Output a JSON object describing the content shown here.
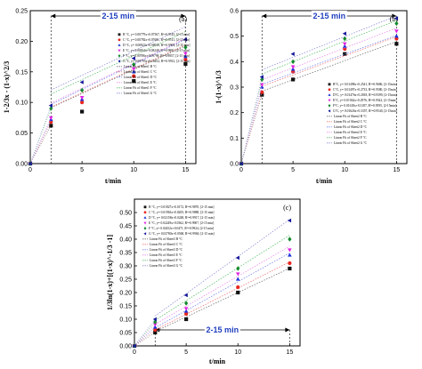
{
  "series_colors": [
    "#111111",
    "#e8261f",
    "#1d34d8",
    "#e023e0",
    "#158a2e",
    "#14169a"
  ],
  "series_markers": [
    "square",
    "circle",
    "triangle-up",
    "triangle-down",
    "diamond",
    "triangle-left"
  ],
  "fit_colors": [
    "#777777",
    "#f07a7a",
    "#7a86ee",
    "#e98ee9",
    "#5fbf70",
    "#8d8fd4"
  ],
  "chart_data": [
    {
      "type": "scatter",
      "panel_label": "(a)",
      "xlabel": "t/min",
      "ylabel": "1-2/3x - (1-x)^2/3",
      "xlim": [
        0,
        16
      ],
      "ylim": [
        0,
        0.25
      ],
      "xticks": [
        0,
        5,
        10,
        15
      ],
      "yticks": [
        0,
        0.05,
        0.1,
        0.15,
        0.2,
        0.25
      ],
      "ytick_labels": [
        "0.00",
        "0.05",
        "0.10",
        "0.15",
        "0.20",
        "0.25"
      ],
      "range_label": "2-15 min",
      "range": [
        2,
        15
      ],
      "x": [
        0,
        2,
        5,
        10,
        15
      ],
      "series": [
        {
          "label": "B °C, y= 0.00779x+0.07567, R²=0.9745, [2-15 min]",
          "values": [
            0,
            0.062,
            0.085,
            0.135,
            0.163
          ],
          "fit": [
            0.0757,
            0.00779
          ]
        },
        {
          "label": "C °C, y= 0.00782x+0.07681, R²=0.9741, [2-15 min]",
          "values": [
            0,
            0.068,
            0.1,
            0.143,
            0.17
          ],
          "fit": [
            0.0768,
            0.00782
          ]
        },
        {
          "label": "D °C, y= 0.00822x+0.08010, R²=0.9903, [2-15 min]",
          "values": [
            0,
            0.072,
            0.105,
            0.15,
            0.175
          ],
          "fit": [
            0.0801,
            0.00822
          ]
        },
        {
          "label": "E °C, y= 0.00814x+0.08248, R²=0.9881, [2-15 min]",
          "values": [
            0,
            0.075,
            0.108,
            0.155,
            0.18
          ],
          "fit": [
            0.0825,
            0.00814
          ]
        },
        {
          "label": "F °C, y= 0.00786x+0.09798, R²=0.9857, [2-15 min]",
          "values": [
            0,
            0.09,
            0.12,
            0.162,
            0.19
          ],
          "fit": [
            0.098,
            0.00786
          ]
        },
        {
          "label": "G °C, y= 0.00795x+0.10452, R²=0.9912, [2-15 min]",
          "values": [
            0,
            0.095,
            0.133,
            0.172,
            0.203
          ],
          "fit": [
            0.1045,
            0.00795
          ]
        }
      ],
      "fit_labels": [
        "Linear Fit of Sheet1 B °C",
        "Linear Fit of Sheet1 C °C",
        "Linear Fit of Sheet1 D °C",
        "Linear Fit of Sheet1 E °C",
        "Linear Fit of Sheet1 F °C",
        "Linear Fit of Sheet1 G °C"
      ]
    },
    {
      "type": "scatter",
      "panel_label": "(b)",
      "xlabel": "t/min",
      "ylabel": "1-(1-x)^1/3",
      "xlim": [
        0,
        16
      ],
      "ylim": [
        0,
        0.6
      ],
      "xticks": [
        0,
        5,
        10,
        15
      ],
      "yticks": [
        0,
        0.1,
        0.2,
        0.3,
        0.4,
        0.5,
        0.6
      ],
      "ytick_labels": [
        "0.0",
        "0.1",
        "0.2",
        "0.3",
        "0.4",
        "0.5",
        "0.6"
      ],
      "range_label": "2-15 min",
      "range": [
        2,
        15
      ],
      "x": [
        0,
        2,
        5,
        10,
        15
      ],
      "series": [
        {
          "label": "B°C, y= 0.01498x+0.2541, R²=0.9686, [2-15min]",
          "values": [
            0,
            0.27,
            0.33,
            0.43,
            0.47
          ],
          "fit": [
            0.2541,
            0.01498
          ]
        },
        {
          "label": "C°C, y= 0.01497x+0.2733, R²=0.9580, [2-15min]",
          "values": [
            0,
            0.28,
            0.36,
            0.45,
            0.49
          ],
          "fit": [
            0.2733,
            0.01497
          ]
        },
        {
          "label": "D°C, y= 0.01476x+0.2818, R²=0.9399, [2-15min]",
          "values": [
            0,
            0.3,
            0.37,
            0.46,
            0.5
          ],
          "fit": [
            0.2818,
            0.01476
          ]
        },
        {
          "label": "E°C, y= 0.01562x+0.2976, R²=0.9542, [2-15min]",
          "values": [
            0,
            0.31,
            0.38,
            0.47,
            0.52
          ],
          "fit": [
            0.2976,
            0.01562
          ]
        },
        {
          "label": "F°C, y= 0.01618x+0.3187, R²=0.9595, [2-15min]",
          "values": [
            0,
            0.33,
            0.4,
            0.49,
            0.55
          ],
          "fit": [
            0.3187,
            0.01618
          ]
        },
        {
          "label": "G°C, y= 0.01626x+0.3357, R²=0.9540, [2-15min]",
          "values": [
            0,
            0.34,
            0.43,
            0.51,
            0.57
          ],
          "fit": [
            0.3357,
            0.01626
          ]
        }
      ],
      "fit_labels": [
        "Linear Fit of Sheet2 B °C",
        "Linear Fit of Sheet2 C °C",
        "Linear Fit of Sheet2 D °C",
        "Linear Fit of Sheet2 E °C",
        "Linear Fit of Sheet2 F °C",
        "Linear Fit of Sheet2 G °C"
      ]
    },
    {
      "type": "scatter",
      "panel_label": "(c)",
      "xlabel": "t/min",
      "ylabel": "1/3ln(1-x)+[(1-x)^-1/3 -1]",
      "xlim": [
        0,
        16
      ],
      "ylim": [
        0,
        0.55
      ],
      "xticks": [
        0,
        5,
        10,
        15
      ],
      "yticks": [
        0,
        0.05,
        0.1,
        0.15,
        0.2,
        0.25,
        0.3,
        0.35,
        0.4,
        0.45,
        0.5
      ],
      "ytick_labels": [
        "0.00",
        "0.05",
        "0.10",
        "0.15",
        "0.20",
        "0.25",
        "0.30",
        "0.35",
        "0.40",
        "0.45",
        "0.50"
      ],
      "range_label": "2-15 min",
      "range": [
        2,
        15
      ],
      "x": [
        0,
        2,
        5,
        10,
        15
      ],
      "series": [
        {
          "label": "B °C, y= 0.01827x+0.0172, R²=0.9870, [2-15 min]",
          "values": [
            0,
            0.05,
            0.1,
            0.2,
            0.29
          ],
          "fit": [
            0.0172,
            0.01827
          ]
        },
        {
          "label": "C °C, y= 0.01963x+0.0205, R²=0.9888, [2-15 min]",
          "values": [
            0,
            0.06,
            0.12,
            0.22,
            0.31
          ],
          "fit": [
            0.0205,
            0.01963
          ]
        },
        {
          "label": "D °C, y= 0.02158x+0.0248, R²=0.9917, [2-15 min]",
          "values": [
            0,
            0.07,
            0.13,
            0.25,
            0.34
          ],
          "fit": [
            0.0248,
            0.02158
          ]
        },
        {
          "label": "E °C, y= 0.02249x+0.0362, R²=0.9907, [2-15 min]",
          "values": [
            0,
            0.08,
            0.14,
            0.27,
            0.36
          ],
          "fit": [
            0.0362,
            0.02249
          ]
        },
        {
          "label": "F °C, y= 0.02452x+0.0471, R²=0.9924, [2-15 min]",
          "values": [
            0,
            0.09,
            0.16,
            0.29,
            0.4
          ],
          "fit": [
            0.0471,
            0.02452
          ]
        },
        {
          "label": "G °C, y= 0.02780x+0.0568, R²=0.9960, [2-15 min]",
          "values": [
            0,
            0.1,
            0.19,
            0.33,
            0.47
          ],
          "fit": [
            0.0568,
            0.0278
          ]
        }
      ],
      "fit_labels": [
        "Linear Fit of Sheet3 B °C",
        "Linear Fit of Sheet3 C °C",
        "Linear Fit of Sheet3 D °C",
        "Linear Fit of Sheet3 E °C",
        "Linear Fit of Sheet3 F °C",
        "Linear Fit of Sheet3 G °C"
      ]
    }
  ]
}
